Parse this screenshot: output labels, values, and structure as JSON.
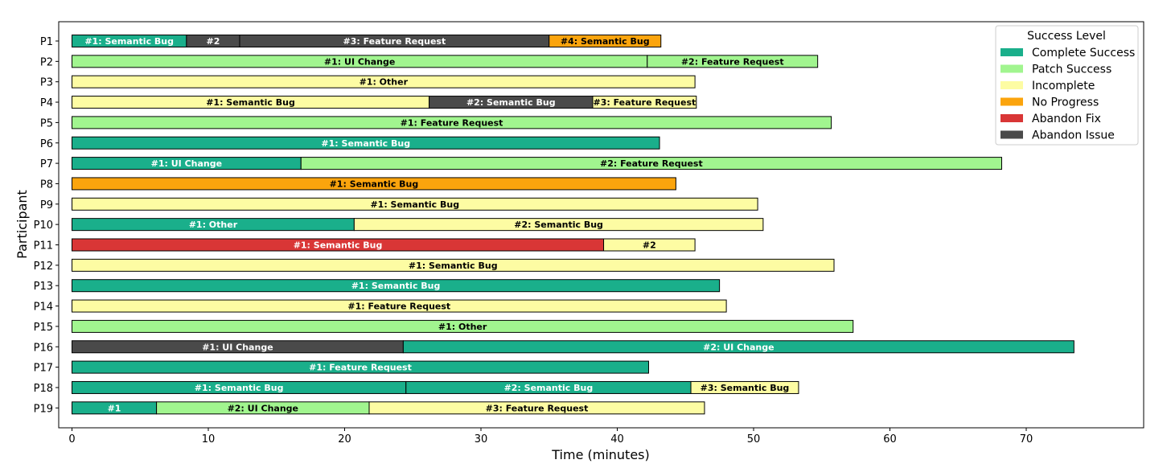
{
  "chart_data": {
    "type": "bar",
    "orientation": "horizontal-gantt",
    "title": "",
    "xlabel": "Time (minutes)",
    "ylabel": "Participant",
    "xlim": [
      -0.8,
      78.5
    ],
    "xticks": [
      0,
      10,
      20,
      30,
      40,
      50,
      60,
      70
    ],
    "grid": false,
    "legend": {
      "title": "Success Level",
      "placement": "top-right",
      "entries": [
        {
          "name": "Complete Success",
          "color": "#1aaf8b"
        },
        {
          "name": "Patch Success",
          "color": "#a1f58f"
        },
        {
          "name": "Incomplete",
          "color": "#fdfca3"
        },
        {
          "name": "No Progress",
          "color": "#fba40d"
        },
        {
          "name": "Abandon Fix",
          "color": "#d93636"
        },
        {
          "name": "Abandon Issue",
          "color": "#4a4a4a"
        }
      ]
    },
    "participants": [
      {
        "name": "P1",
        "segments": [
          {
            "label": "#1: Semantic Bug",
            "start": 0,
            "end": 8.4,
            "status": "Complete Success"
          },
          {
            "label": "#2",
            "start": 8.4,
            "end": 12.3,
            "status": "Abandon Issue"
          },
          {
            "label": "#3: Feature Request",
            "start": 12.3,
            "end": 35.0,
            "status": "Abandon Issue"
          },
          {
            "label": "#4: Semantic Bug",
            "start": 35.0,
            "end": 43.2,
            "status": "No Progress"
          }
        ]
      },
      {
        "name": "P2",
        "segments": [
          {
            "label": "#1: UI Change",
            "start": 0,
            "end": 42.2,
            "status": "Patch Success"
          },
          {
            "label": "#2: Feature Request",
            "start": 42.2,
            "end": 54.7,
            "status": "Patch Success"
          }
        ]
      },
      {
        "name": "P3",
        "segments": [
          {
            "label": "#1: Other",
            "start": 0,
            "end": 45.7,
            "status": "Incomplete"
          }
        ]
      },
      {
        "name": "P4",
        "segments": [
          {
            "label": "#1: Semantic Bug",
            "start": 0,
            "end": 26.2,
            "status": "Incomplete"
          },
          {
            "label": "#2: Semantic Bug",
            "start": 26.2,
            "end": 38.2,
            "status": "Abandon Issue"
          },
          {
            "label": "#3: Feature Request",
            "start": 38.2,
            "end": 45.8,
            "status": "Incomplete"
          }
        ]
      },
      {
        "name": "P5",
        "segments": [
          {
            "label": "#1: Feature Request",
            "start": 0,
            "end": 55.7,
            "status": "Patch Success"
          }
        ]
      },
      {
        "name": "P6",
        "segments": [
          {
            "label": "#1: Semantic Bug",
            "start": 0,
            "end": 43.1,
            "status": "Complete Success"
          }
        ]
      },
      {
        "name": "P7",
        "segments": [
          {
            "label": "#1: UI Change",
            "start": 0,
            "end": 16.8,
            "status": "Complete Success"
          },
          {
            "label": "#2: Feature Request",
            "start": 16.8,
            "end": 68.2,
            "status": "Patch Success"
          }
        ]
      },
      {
        "name": "P8",
        "segments": [
          {
            "label": "#1: Semantic Bug",
            "start": 0,
            "end": 44.3,
            "status": "No Progress"
          }
        ]
      },
      {
        "name": "P9",
        "segments": [
          {
            "label": "#1: Semantic Bug",
            "start": 0,
            "end": 50.3,
            "status": "Incomplete"
          }
        ]
      },
      {
        "name": "P10",
        "segments": [
          {
            "label": "#1: Other",
            "start": 0,
            "end": 20.7,
            "status": "Complete Success"
          },
          {
            "label": "#2: Semantic Bug",
            "start": 20.7,
            "end": 50.7,
            "status": "Incomplete"
          }
        ]
      },
      {
        "name": "P11",
        "segments": [
          {
            "label": "#1: Semantic Bug",
            "start": 0,
            "end": 39.0,
            "status": "Abandon Fix"
          },
          {
            "label": "#2",
            "start": 39.0,
            "end": 45.7,
            "status": "Incomplete"
          }
        ]
      },
      {
        "name": "P12",
        "segments": [
          {
            "label": "#1: Semantic Bug",
            "start": 0,
            "end": 55.9,
            "status": "Incomplete"
          }
        ]
      },
      {
        "name": "P13",
        "segments": [
          {
            "label": "#1: Semantic Bug",
            "start": 0,
            "end": 47.5,
            "status": "Complete Success"
          }
        ]
      },
      {
        "name": "P14",
        "segments": [
          {
            "label": "#1: Feature Request",
            "start": 0,
            "end": 48.0,
            "status": "Incomplete"
          }
        ]
      },
      {
        "name": "P15",
        "segments": [
          {
            "label": "#1: Other",
            "start": 0,
            "end": 57.3,
            "status": "Patch Success"
          }
        ]
      },
      {
        "name": "P16",
        "segments": [
          {
            "label": "#1: UI Change",
            "start": 0,
            "end": 24.3,
            "status": "Abandon Issue"
          },
          {
            "label": "#2: UI Change",
            "start": 24.3,
            "end": 73.5,
            "status": "Complete Success"
          }
        ]
      },
      {
        "name": "P17",
        "segments": [
          {
            "label": "#1: Feature Request",
            "start": 0,
            "end": 42.3,
            "status": "Complete Success"
          }
        ]
      },
      {
        "name": "P18",
        "segments": [
          {
            "label": "#1: Semantic Bug",
            "start": 0,
            "end": 24.5,
            "status": "Complete Success"
          },
          {
            "label": "#2: Semantic Bug",
            "start": 24.5,
            "end": 45.4,
            "status": "Complete Success"
          },
          {
            "label": "#3: Semantic Bug",
            "start": 45.4,
            "end": 53.3,
            "status": "Incomplete"
          }
        ]
      },
      {
        "name": "P19",
        "segments": [
          {
            "label": "#1",
            "start": 0,
            "end": 6.2,
            "status": "Complete Success"
          },
          {
            "label": "#2: UI Change",
            "start": 6.2,
            "end": 21.8,
            "status": "Patch Success"
          },
          {
            "label": "#3: Feature Request",
            "start": 21.8,
            "end": 46.4,
            "status": "Incomplete"
          }
        ]
      }
    ]
  }
}
